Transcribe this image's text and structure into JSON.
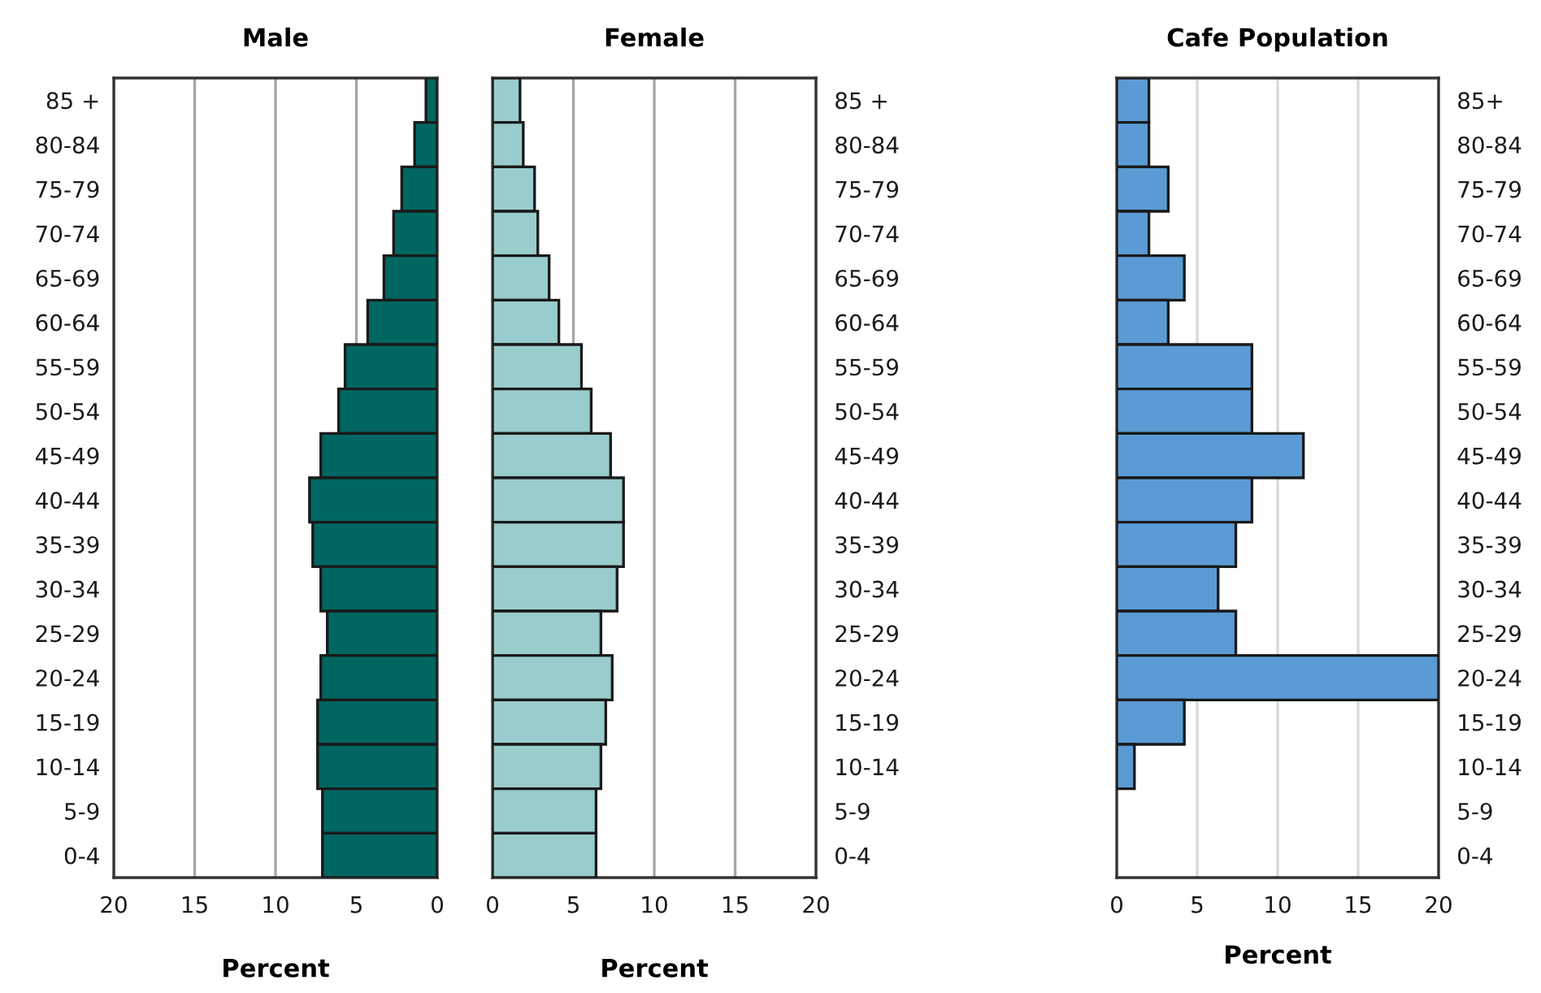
{
  "chart_data": [
    {
      "type": "bar",
      "orientation": "horizontal",
      "title": "Male",
      "xlabel": "Percent",
      "categories": [
        "85 +",
        "80-84",
        "75-79",
        "70-74",
        "65-69",
        "60-64",
        "55-59",
        "50-54",
        "45-49",
        "40-44",
        "35-39",
        "30-34",
        "25-29",
        "20-24",
        "15-19",
        "10-14",
        "5-9",
        "0-4"
      ],
      "series": [
        {
          "color": "#006661",
          "values": [
            0.7,
            1.4,
            2.2,
            2.7,
            3.3,
            4.3,
            5.7,
            6.1,
            7.2,
            7.9,
            7.7,
            7.2,
            6.8,
            7.2,
            7.4,
            7.4,
            7.1,
            7.1
          ]
        }
      ],
      "xlim": [
        20,
        0
      ],
      "xticks": [
        20,
        15,
        10,
        5,
        0
      ],
      "grid": "x"
    },
    {
      "type": "bar",
      "orientation": "horizontal",
      "title": "Female",
      "xlabel": "Percent",
      "categories": [
        "85 +",
        "80-84",
        "75-79",
        "70-74",
        "65-69",
        "60-64",
        "55-59",
        "50-54",
        "45-49",
        "40-44",
        "35-39",
        "30-34",
        "25-29",
        "20-24",
        "15-19",
        "10-14",
        "5-9",
        "0-4"
      ],
      "series": [
        {
          "color": "#99cccc",
          "values": [
            1.7,
            1.9,
            2.6,
            2.8,
            3.5,
            4.1,
            5.5,
            6.1,
            7.3,
            8.1,
            8.1,
            7.7,
            6.7,
            7.4,
            7.0,
            6.7,
            6.4,
            6.4
          ]
        }
      ],
      "xlim": [
        0,
        20
      ],
      "xticks": [
        0,
        5,
        10,
        15,
        20
      ],
      "grid": "x"
    },
    {
      "type": "bar",
      "orientation": "horizontal",
      "title": "Cafe Population",
      "xlabel": "Percent",
      "categories": [
        "85+",
        "80-84",
        "75-79",
        "70-74",
        "65-69",
        "60-64",
        "55-59",
        "50-54",
        "45-49",
        "40-44",
        "35-39",
        "30-34",
        "25-29",
        "20-24",
        "15-19",
        "10-14",
        "5-9",
        "0-4"
      ],
      "series": [
        {
          "color": "#5b9bd5",
          "values": [
            2.0,
            2.0,
            3.2,
            2.0,
            4.2,
            3.2,
            8.4,
            8.4,
            11.6,
            8.4,
            7.4,
            6.3,
            7.4,
            20,
            4.2,
            1.1,
            0,
            0
          ]
        }
      ],
      "xlim": [
        0,
        20
      ],
      "xticks": [
        0,
        5,
        10,
        15,
        20
      ],
      "grid": "x"
    }
  ]
}
